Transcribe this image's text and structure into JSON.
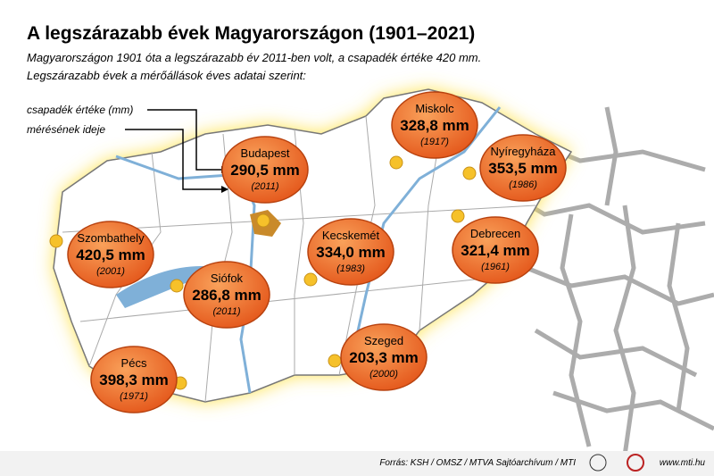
{
  "header": {
    "title": "A legszárazabb évek Magyarországon (1901–2021)",
    "subtitle_lines": [
      "Magyarországon 1901 óta a legszárazabb év 2011-ben volt, a csapadék értéke 420 mm.",
      "Legszárazabb évek a mérőállások éves adatai szerint:"
    ]
  },
  "legend": {
    "value_label": "csapadék értéke (mm)",
    "year_label": "mérésének ideje"
  },
  "cities": [
    {
      "name": "Budapest",
      "value": "290,5 mm",
      "year": "(2011)"
    },
    {
      "name": "Miskolc",
      "value": "328,8 mm",
      "year": "(1917)"
    },
    {
      "name": "Nyíregyháza",
      "value": "353,5 mm",
      "year": "(1986)"
    },
    {
      "name": "Szombathely",
      "value": "420,5 mm",
      "year": "(2001)"
    },
    {
      "name": "Kecskemét",
      "value": "334,0 mm",
      "year": "(1983)"
    },
    {
      "name": "Debrecen",
      "value": "321,4 mm",
      "year": "(1961)"
    },
    {
      "name": "Siófok",
      "value": "286,8 mm",
      "year": "(2011)"
    },
    {
      "name": "Pécs",
      "value": "398,3 mm",
      "year": "(1971)"
    },
    {
      "name": "Szeged",
      "value": "203,3 mm",
      "year": "(2000)"
    }
  ],
  "footer": {
    "source": "Forrás: KSH / OMSZ / MTVA Sajtóarchívum / MTI",
    "website": "www.mti.hu"
  }
}
